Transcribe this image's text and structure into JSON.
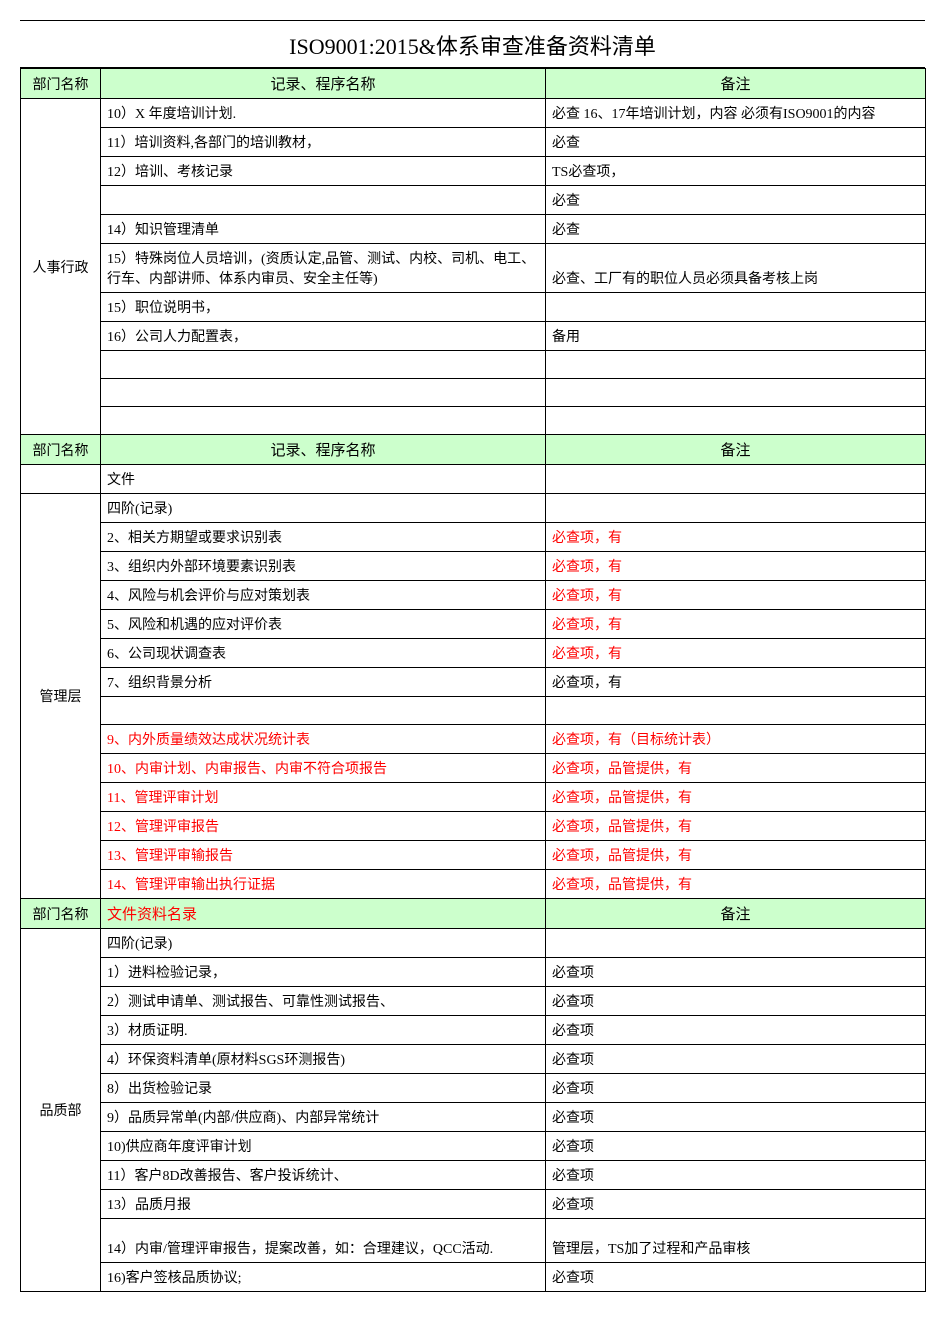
{
  "title": "ISO9001:2015&体系审查准备资料清单",
  "colors": {
    "header_bg": "#ccffcc",
    "red_text": "#ff0000",
    "border": "#000000",
    "bg": "#ffffff"
  },
  "headers": {
    "dept": "部门名称",
    "record": "记录、程序名称",
    "note": "备注",
    "catalog": "文件资料名录"
  },
  "sections": [
    {
      "dept": "人事行政",
      "rows": [
        {
          "name": "10）X 年度培训计划.",
          "note": "必查 16、17年培训计划，内容 必须有ISO9001的内容",
          "tall": false
        },
        {
          "name": "11）培训资料,各部门的培训教材，",
          "note": "必查"
        },
        {
          "name": "12）培训、考核记录",
          "note": "TS必查项，"
        },
        {
          "name": "",
          "note": "必查"
        },
        {
          "name": "14）知识管理清单",
          "note": "必查"
        },
        {
          "name": "15）特殊岗位人员培训，(资质认定,品管、测试、内校、司机、电工、行车、内部讲师、体系内审员、安全主任等)",
          "note": "必查、工厂有的职位人员必须具备考核上岗",
          "tall": true
        },
        {
          "name": "15）职位说明书，",
          "note": ""
        },
        {
          "name": "16）公司人力配置表，",
          "note": "备用"
        },
        {
          "name": "",
          "note": ""
        },
        {
          "name": "",
          "note": ""
        },
        {
          "name": "",
          "note": ""
        }
      ]
    },
    {
      "dept": "管理层",
      "header": {
        "dept": "部门名称",
        "name": "记录、程序名称",
        "note": "备注"
      },
      "rows": [
        {
          "name": "文件",
          "note": ""
        },
        {
          "name": "四阶(记录)",
          "note": ""
        },
        {
          "name": "2、相关方期望或要求识别表",
          "note": "必查项，有",
          "note_red": true
        },
        {
          "name": "3、组织内外部环境要素识别表",
          "note": "必查项，有",
          "note_red": true
        },
        {
          "name": "4、风险与机会评价与应对策划表",
          "note": "必查项，有",
          "note_red": true
        },
        {
          "name": "5、风险和机遇的应对评价表",
          "note": "必查项，有",
          "note_red": true
        },
        {
          "name": "6、公司现状调查表",
          "note": "必查项，有",
          "note_red": true
        },
        {
          "name": "7、组织背景分析",
          "note": "必查项，有"
        },
        {
          "name": "",
          "note": ""
        },
        {
          "name": "9、内外质量绩效达成状况统计表",
          "name_red": true,
          "note": "必查项，有（目标统计表）",
          "note_red": true
        },
        {
          "name": "10、内审计划、内审报告、内审不符合项报告",
          "name_red": true,
          "note": "必查项，品管提供，有",
          "note_red": true
        },
        {
          "name": "11、管理评审计划",
          "name_red": true,
          "note": "必查项，品管提供，有",
          "note_red": true
        },
        {
          "name": "12、管理评审报告",
          "name_red": true,
          "note": "必查项，品管提供，有",
          "note_red": true
        },
        {
          "name": "13、管理评审输报告",
          "name_red": true,
          "note": "必查项，品管提供，有",
          "note_red": true
        },
        {
          "name": "14、管理评审输出执行证据",
          "name_red": true,
          "note": "必查项，品管提供，有",
          "note_red": true
        }
      ]
    },
    {
      "dept": "品质部",
      "header": {
        "dept": "部门名称",
        "name": "文件资料名录",
        "note": "备注",
        "name_red": true
      },
      "rows": [
        {
          "name": "四阶(记录)",
          "note": ""
        },
        {
          "name": "1）进料检验记录，",
          "note": "必查项"
        },
        {
          "name": "2）测试申请单、测试报告、可靠性测试报告、",
          "note": "必查项"
        },
        {
          "name": "3）材质证明.",
          "note": "必查项"
        },
        {
          "name": "4）环保资料清单(原材料SGS环测报告)",
          "note": "必查项"
        },
        {
          "name": "8）出货检验记录",
          "note": "必查项"
        },
        {
          "name": "9）品质异常单(内部/供应商)、内部异常统计",
          "note": "必查项"
        },
        {
          "name": "10)供应商年度评审计划",
          "note": "必查项"
        },
        {
          "name": "11）客户8D改善报告、客户投诉统计、",
          "note": "必查项"
        },
        {
          "name": "13）品质月报",
          "note": "必查项"
        },
        {
          "name": "14）内审/管理评审报告，提案改善，如：合理建议，QCC活动.",
          "note": "管理层，TS加了过程和产品审核",
          "tall": true
        },
        {
          "name": "16)客户签核品质协议;",
          "note": "必查项"
        }
      ]
    }
  ]
}
